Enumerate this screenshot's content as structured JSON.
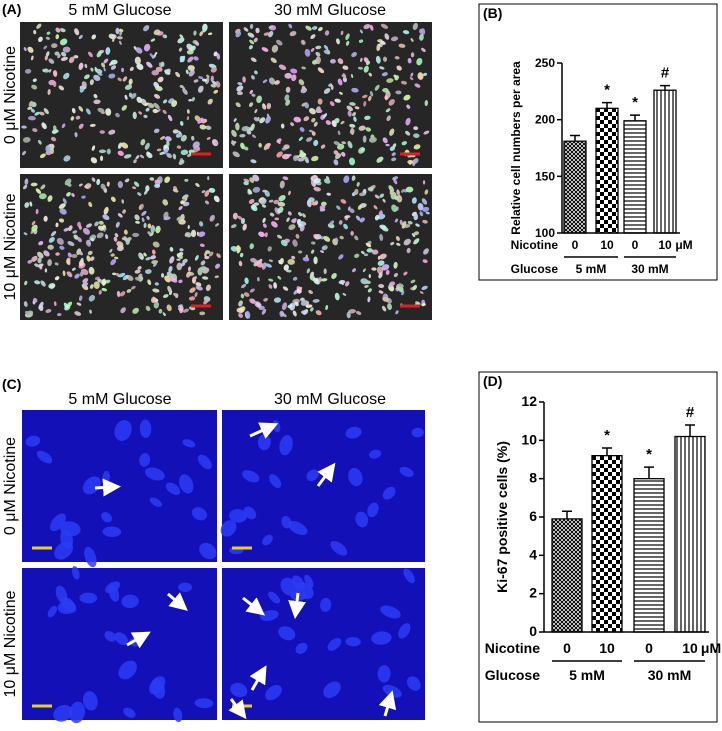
{
  "panel_a": {
    "label": "(A)",
    "columns": [
      "5 mM Glucose",
      "30 mM Glucose"
    ],
    "rows": [
      "0 μM Nicotine",
      "10 μM Nicotine"
    ]
  },
  "panel_c": {
    "label": "(C)",
    "columns": [
      "5 mM Glucose",
      "30 mM Glucose"
    ],
    "rows": [
      "0 μM Nicotine",
      "10 μM Nicotine"
    ]
  },
  "chart_data": [
    {
      "type": "bar",
      "label": "(B)",
      "y_label": "Relative cell numbers per area",
      "row_labels": [
        "Nicotine",
        "Glucose"
      ],
      "unit": "μM",
      "categories": [
        "0",
        "10",
        "0",
        "10"
      ],
      "groups": [
        "5 mM",
        "30 mM"
      ],
      "values": [
        181,
        210,
        199,
        226
      ],
      "errors": [
        5,
        5,
        5,
        4
      ],
      "annotations": [
        null,
        "*",
        "*",
        "#"
      ],
      "ylim": [
        100,
        250
      ],
      "yticks": [
        100,
        150,
        200,
        250
      ]
    },
    {
      "type": "bar",
      "label": "(D)",
      "y_label": "Ki-67 positive cells (%)",
      "row_labels": [
        "Nicotine",
        "Glucose"
      ],
      "unit": "μM",
      "categories": [
        "0",
        "10",
        "0",
        "10"
      ],
      "groups": [
        "5 mM",
        "30 mM"
      ],
      "values": [
        5.9,
        9.2,
        8.0,
        10.2
      ],
      "errors": [
        0.4,
        0.4,
        0.6,
        0.6
      ],
      "annotations": [
        null,
        "*",
        "*",
        "#"
      ],
      "ylim": [
        0,
        12
      ],
      "yticks": [
        0,
        2,
        4,
        6,
        8,
        10,
        12
      ]
    }
  ]
}
